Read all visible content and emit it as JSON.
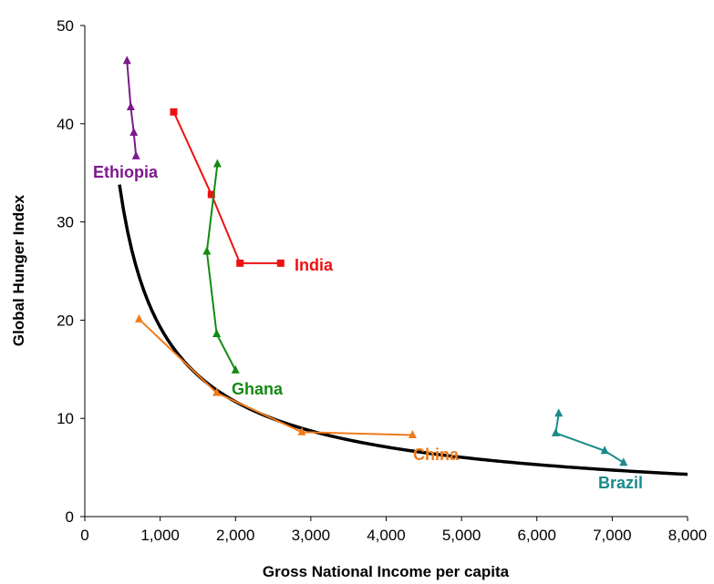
{
  "chart_data": {
    "type": "scatter",
    "title": "",
    "xlabel": "Gross National Income per capita",
    "ylabel": "Global Hunger Index",
    "xlim": [
      0,
      8000
    ],
    "ylim": [
      0,
      50
    ],
    "xticks": [
      "0",
      "1,000",
      "2,000",
      "3,000",
      "4,000",
      "5,000",
      "6,000",
      "7,000",
      "8,000"
    ],
    "yticks": [
      "0",
      "10",
      "20",
      "30",
      "40",
      "50"
    ],
    "grid": false,
    "legend": "none",
    "series": [
      {
        "name": "Ethiopia",
        "color": "#7B1A8B",
        "marker": "triangle",
        "points": [
          [
            560,
            46.4
          ],
          [
            610,
            41.7
          ],
          [
            650,
            39.1
          ],
          [
            680,
            36.7
          ]
        ]
      },
      {
        "name": "India",
        "color": "#EE1111",
        "marker": "square",
        "points": [
          [
            1180,
            41.2
          ],
          [
            1680,
            32.8
          ],
          [
            2060,
            25.8
          ],
          [
            2600,
            25.8
          ]
        ]
      },
      {
        "name": "Ghana",
        "color": "#138A13",
        "marker": "triangle",
        "points": [
          [
            1760,
            35.9
          ],
          [
            1620,
            27.0
          ],
          [
            1750,
            18.6
          ],
          [
            2000,
            14.9
          ]
        ]
      },
      {
        "name": "China",
        "color": "#F07A1A",
        "marker": "triangle",
        "points": [
          [
            720,
            20.1
          ],
          [
            1750,
            12.6
          ],
          [
            2880,
            8.6
          ],
          [
            4350,
            8.3
          ]
        ]
      },
      {
        "name": "Brazil",
        "color": "#1A8A8A",
        "marker": "triangle",
        "points": [
          [
            6290,
            10.5
          ],
          [
            6250,
            8.5
          ],
          [
            6900,
            6.7
          ],
          [
            7150,
            5.5
          ]
        ]
      }
    ],
    "trendline": {
      "type": "power",
      "color": "#000000",
      "x_range": [
        460,
        8000
      ],
      "y_range": [
        33.8,
        4.3
      ]
    }
  }
}
